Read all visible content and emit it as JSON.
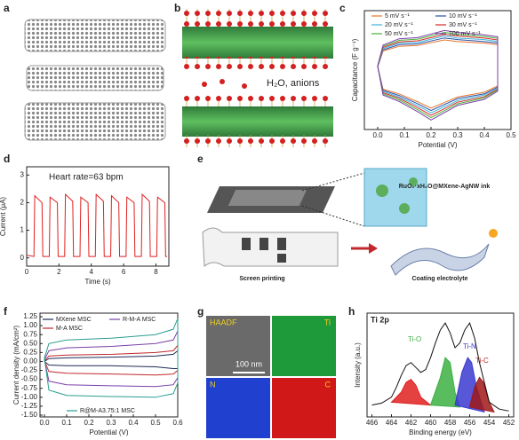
{
  "panel_labels": [
    "a",
    "b",
    "c",
    "d",
    "e",
    "f",
    "g",
    "h"
  ],
  "structure_image": {
    "label": "H₂O, anions"
  },
  "fabrication_diagram": {
    "ink_label": "RuO₂·xH₂O@MXene-AgNW ink",
    "step_1": "Screen printing",
    "step_2": "Coating electrolyte"
  },
  "eds_maps": {
    "maps": [
      "HAADF",
      "Ti",
      "N",
      "C"
    ],
    "scale_bar": "100 nm"
  },
  "chart_data": [
    {
      "type": "line",
      "x_label": "Potential (V)",
      "y_label": "Capacitance (F g⁻¹)",
      "x": [
        0,
        0.02,
        0.08,
        0.15,
        0.25,
        0.3,
        0.4,
        0.45,
        0.45,
        0.4,
        0.3,
        0.2,
        0.15,
        0.08,
        0.02,
        0
      ],
      "xlim": [
        -0.05,
        0.5
      ],
      "ylim": [
        -1.5,
        1.5
      ],
      "xticks": [
        {
          "value": 0,
          "label": "0.0"
        },
        0.1,
        0.2,
        0.3,
        0.4,
        0.5
      ],
      "series": [
        {
          "name": "5 mV s⁻¹",
          "color": "#e8742a",
          "values": [
            0.08,
            0.48,
            0.6,
            0.62,
            0.76,
            0.72,
            0.68,
            0.64,
            -0.4,
            -0.56,
            -0.68,
            -0.96,
            -0.8,
            -0.6,
            -0.48,
            0.08
          ]
        },
        {
          "name": "10 mV s⁻¹",
          "color": "#2b4fa8",
          "values": [
            0.09,
            0.51,
            0.64,
            0.66,
            0.81,
            0.77,
            0.72,
            0.68,
            -0.43,
            -0.6,
            -0.72,
            -1.02,
            -0.85,
            -0.64,
            -0.51,
            0.09
          ]
        },
        {
          "name": "20 mV s⁻¹",
          "color": "#3fb6d8",
          "values": [
            0.09,
            0.54,
            0.68,
            0.7,
            0.86,
            0.81,
            0.77,
            0.72,
            -0.45,
            -0.63,
            -0.77,
            -1.08,
            -0.9,
            -0.68,
            -0.54,
            0.09
          ]
        },
        {
          "name": "30 mV s⁻¹",
          "color": "#d62828",
          "values": [
            0.1,
            0.57,
            0.71,
            0.74,
            0.9,
            0.86,
            0.81,
            0.76,
            -0.48,
            -0.67,
            -0.81,
            -1.14,
            -0.95,
            -0.71,
            -0.57,
            0.1
          ]
        },
        {
          "name": "50 mV s⁻¹",
          "color": "#4caf3a",
          "values": [
            0.1,
            0.6,
            0.75,
            0.78,
            0.95,
            0.9,
            0.85,
            0.8,
            -0.5,
            -0.7,
            -0.85,
            -1.2,
            -1.0,
            -0.75,
            -0.6,
            0.1
          ]
        },
        {
          "name": "100 mV s⁻¹",
          "color": "#7a3fa8",
          "values": [
            0.11,
            0.63,
            0.79,
            0.82,
            1.0,
            0.95,
            0.89,
            0.84,
            -0.53,
            -0.74,
            -0.89,
            -1.26,
            -1.05,
            -0.79,
            -0.63,
            0.11
          ]
        }
      ]
    },
    {
      "type": "line",
      "x_label": "Time (s)",
      "y_label": "Current (μA)",
      "annotation": "Heart rate=63 bpm",
      "x": [
        0,
        0.45,
        0.5,
        0.95,
        1.0,
        1.4,
        1.45,
        1.9,
        1.95,
        2.35,
        2.4,
        2.85,
        2.9,
        3.3,
        3.35,
        3.8,
        3.85,
        4.25,
        4.3,
        4.75,
        4.8,
        5.2,
        5.25,
        5.7,
        5.75,
        6.15,
        6.2,
        6.65,
        6.7,
        7.1,
        7.15,
        7.6,
        7.65,
        8.05,
        8.1,
        8.55,
        8.6,
        8.7
      ],
      "xlim": [
        0,
        8.8
      ],
      "ylim": [
        -0.3,
        3.3
      ],
      "xticks": [
        0,
        2,
        4,
        6,
        8
      ],
      "yticks": [
        0,
        1,
        2,
        3
      ],
      "series": [
        {
          "color": "#e02020",
          "values": [
            0.1,
            0.05,
            2.25,
            2.0,
            0.05,
            0.05,
            2.2,
            2.0,
            0.05,
            0.05,
            2.3,
            2.05,
            0.05,
            0.05,
            2.2,
            2.0,
            0.05,
            0.05,
            2.3,
            2.05,
            0.05,
            0.05,
            2.25,
            2.0,
            0.05,
            0.05,
            2.2,
            2.0,
            0.05,
            0.05,
            2.3,
            2.05,
            0.05,
            0.05,
            2.2,
            2.0,
            0.05,
            0.05
          ]
        }
      ]
    },
    {
      "type": "line",
      "x_label": "Potential (V)",
      "y_label": "Current density (mA/cm²)",
      "x": [
        0,
        0.02,
        0.1,
        0.3,
        0.5,
        0.58,
        0.6,
        0.6,
        0.58,
        0.5,
        0.3,
        0.1,
        0.02,
        0
      ],
      "xlim": [
        -0.02,
        0.6
      ],
      "ylim": [
        -1.55,
        1.35
      ],
      "xticks": [
        {
          "value": 0,
          "label": "0.0"
        },
        0.1,
        0.2,
        0.3,
        0.4,
        0.5,
        0.6
      ],
      "yticks": [
        {
          "value": -1.5,
          "label": "-1.50"
        },
        {
          "value": -1.25,
          "label": "-1.25"
        },
        {
          "value": -1,
          "label": "-1.00"
        },
        {
          "value": -0.75,
          "label": "-0.75"
        },
        {
          "value": -0.5,
          "label": "-0.50"
        },
        {
          "value": -0.25,
          "label": "-0.25"
        },
        {
          "value": 0,
          "label": "0.00"
        },
        0.25,
        {
          "value": 0.5,
          "label": "0.50"
        },
        0.75,
        {
          "value": 1,
          "label": "1.00"
        },
        1.25
      ],
      "series": [
        {
          "name": "MXene MSC",
          "color": "#1f2a55",
          "values": [
            0,
            0.08,
            0.1,
            0.12,
            0.15,
            0.2,
            0.3,
            -0.2,
            -0.2,
            -0.15,
            -0.12,
            -0.12,
            -0.1,
            0
          ]
        },
        {
          "name": "R-M-A MSC",
          "color": "#7a3fa8",
          "values": [
            0.05,
            0.3,
            0.38,
            0.42,
            0.5,
            0.6,
            0.85,
            -0.45,
            -0.65,
            -0.7,
            -0.68,
            -0.65,
            -0.55,
            0.05
          ]
        },
        {
          "name": "M-A MSC",
          "color": "#c0282d",
          "values": [
            0.02,
            0.15,
            0.18,
            0.2,
            0.25,
            0.3,
            0.45,
            -0.25,
            -0.35,
            -0.38,
            -0.35,
            -0.33,
            -0.28,
            0.02
          ]
        },
        {
          "name": "R@M-A3.75:1 MSC",
          "color": "#2a9d8f",
          "values": [
            0.1,
            0.5,
            0.6,
            0.65,
            0.75,
            0.9,
            1.2,
            -0.6,
            -0.9,
            -1.0,
            -0.98,
            -0.95,
            -0.8,
            0.1
          ]
        }
      ]
    },
    {
      "type": "line",
      "title": "Ti 2p",
      "x_label": "Binding energy (eV)",
      "y_label": "Intensity (a.u.)",
      "xlim": [
        466.5,
        451.5
      ],
      "ylim": [
        0,
        1.05
      ],
      "xticks": [
        466,
        464,
        462,
        460,
        458,
        456,
        454,
        452
      ],
      "annotations": [
        {
          "text": "Ti-O",
          "color": "#3cb043"
        },
        {
          "text": "Ti-N",
          "color": "#3a3ad0"
        },
        {
          "text": "Ti-C",
          "color": "#c0282d"
        }
      ],
      "series": [
        {
          "color": "#e02020",
          "fill": true,
          "x": [
            464,
            463,
            462.5,
            462,
            461.5,
            461,
            460
          ],
          "values": [
            0.15,
            0.25,
            0.35,
            0.38,
            0.32,
            0.2,
            0.12
          ]
        },
        {
          "color": "#3cb043",
          "fill": true,
          "x": [
            460,
            459,
            458.5,
            458,
            457.5,
            457
          ],
          "values": [
            0.12,
            0.4,
            0.6,
            0.55,
            0.25,
            0.1
          ]
        },
        {
          "color": "#3a3ad0",
          "fill": true,
          "x": [
            457.5,
            456.8,
            456.2,
            455.8,
            455.3,
            454.5
          ],
          "values": [
            0.12,
            0.45,
            0.6,
            0.55,
            0.3,
            0.05
          ]
        },
        {
          "color": "#a01818",
          "fill": true,
          "x": [
            456,
            455.5,
            455,
            454.6,
            454,
            453.5
          ],
          "values": [
            0.1,
            0.3,
            0.4,
            0.35,
            0.15,
            0.05
          ]
        },
        {
          "color": "#111111",
          "x": [
            466,
            465,
            464,
            463.5,
            463,
            462.5,
            462,
            461.5,
            461,
            460.5,
            460,
            459.5,
            459,
            458.5,
            458,
            457.5,
            457,
            456.5,
            456,
            455.5,
            455,
            454.5,
            454,
            453,
            452
          ],
          "values": [
            0.12,
            0.14,
            0.2,
            0.3,
            0.42,
            0.52,
            0.55,
            0.5,
            0.45,
            0.48,
            0.6,
            0.75,
            0.88,
            0.95,
            0.85,
            0.7,
            0.75,
            0.88,
            0.95,
            0.8,
            0.55,
            0.35,
            0.15,
            0.08,
            0.06
          ]
        }
      ]
    }
  ]
}
